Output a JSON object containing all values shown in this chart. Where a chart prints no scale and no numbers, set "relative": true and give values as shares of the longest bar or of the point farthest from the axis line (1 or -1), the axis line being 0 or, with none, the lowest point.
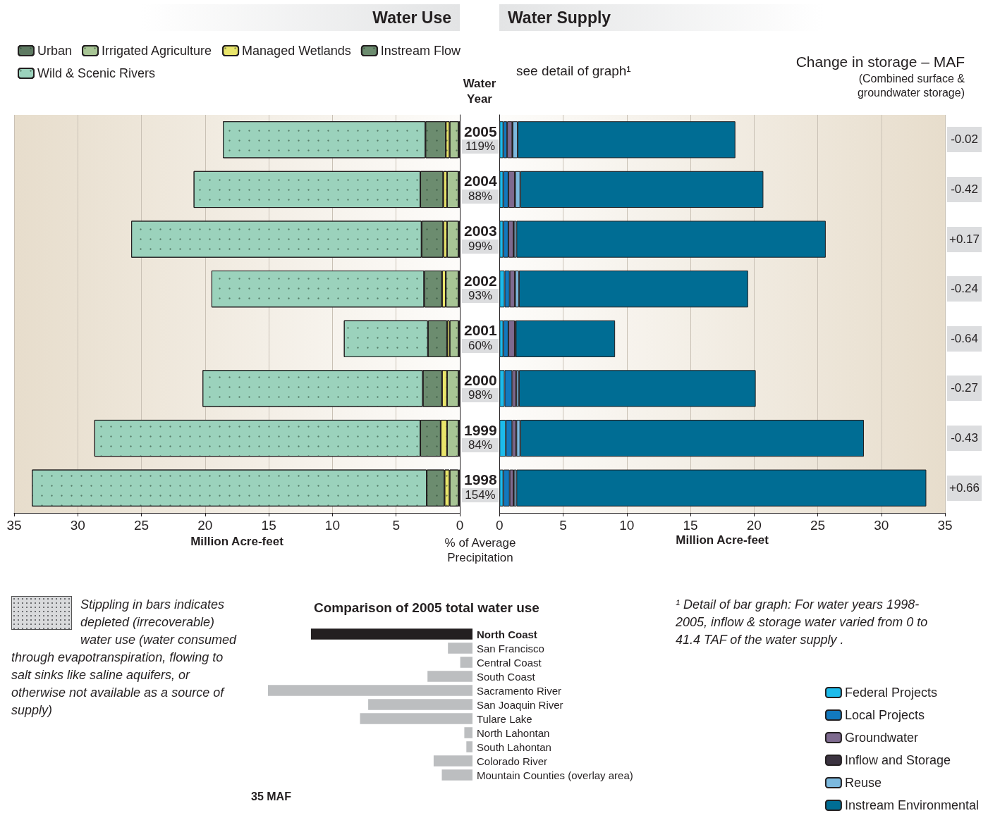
{
  "chart_data": [
    {
      "type": "bar",
      "orientation": "horizontal",
      "stacked": true,
      "title": "Water Use",
      "xlabel": "Million Acre-feet",
      "ylabel": "Water Year",
      "categories": [
        "2005",
        "2004",
        "2003",
        "2002",
        "2001",
        "2000",
        "1999",
        "1998"
      ],
      "xlim": [
        35,
        0
      ],
      "xticks": [
        35,
        30,
        25,
        20,
        15,
        10,
        5,
        0
      ],
      "grid": "x",
      "legend": "top",
      "annotations": [
        "Stippling in bars indicates depleted (irrecoverable) water use (water consumed through evapotranspiration, flowing to salt sinks like saline aquifers, or otherwise not available as a source of supply)"
      ],
      "series": [
        {
          "name": "Urban",
          "color": "#5e7a62",
          "values": [
            0.1,
            0.1,
            0.1,
            0.1,
            0.1,
            0.1,
            0.1,
            0.1
          ]
        },
        {
          "name": "Irrigated Agriculture",
          "color": "#a8c595",
          "values": [
            0.7,
            0.9,
            0.9,
            1.0,
            0.7,
            0.9,
            0.9,
            0.7
          ]
        },
        {
          "name": "Managed Wetlands",
          "color": "#e9e56b",
          "values": [
            0.3,
            0.3,
            0.3,
            0.3,
            0.2,
            0.4,
            0.5,
            0.4
          ]
        },
        {
          "name": "Instream Flow",
          "color": "#6c8c6f",
          "values": [
            1.6,
            1.8,
            1.7,
            1.4,
            1.5,
            1.5,
            1.6,
            1.4
          ]
        },
        {
          "name": "Wild & Scenic Rivers",
          "color": "#9bd2bc",
          "values": [
            15.9,
            17.8,
            22.8,
            16.7,
            6.6,
            17.3,
            25.6,
            31.0
          ]
        }
      ]
    },
    {
      "type": "bar",
      "orientation": "horizontal",
      "stacked": true,
      "title": "Water Supply",
      "xlabel": "Million Acre-feet",
      "categories": [
        "2005",
        "2004",
        "2003",
        "2002",
        "2001",
        "2000",
        "1999",
        "1998"
      ],
      "xlim": [
        0,
        35
      ],
      "xticks": [
        0,
        5,
        10,
        15,
        20,
        25,
        30,
        35
      ],
      "grid": "x",
      "legend": "bottom right",
      "tick_labels": "x",
      "annotations": [
        "see detail of graph¹",
        "¹ Detail of bar graph: For water years 1998-2005, inflow & storage water varied from 0 to 41.4 TAF of the water supply ."
      ],
      "series": [
        {
          "name": "Federal Projects",
          "color": "#1cbbeb",
          "values": [
            0.3,
            0.3,
            0.3,
            0.4,
            0.3,
            0.4,
            0.5,
            0.3
          ]
        },
        {
          "name": "Local Projects",
          "color": "#1279be",
          "values": [
            0.3,
            0.4,
            0.4,
            0.4,
            0.4,
            0.6,
            0.5,
            0.5
          ]
        },
        {
          "name": "Groundwater",
          "color": "#7e6a8f",
          "values": [
            0.4,
            0.5,
            0.4,
            0.4,
            0.5,
            0.3,
            0.3,
            0.3
          ]
        },
        {
          "name": "Inflow and Storage",
          "color": "#3b3340",
          "values": [
            0.03,
            0.03,
            0.03,
            0.03,
            0.03,
            0.03,
            0.03,
            0.03
          ]
        },
        {
          "name": "Reuse",
          "color": "#7cb9de",
          "values": [
            0.4,
            0.4,
            0.2,
            0.3,
            0.05,
            0.2,
            0.3,
            0.2
          ]
        },
        {
          "name": "Instream Environmental",
          "color": "#006d94",
          "values": [
            17.1,
            19.1,
            24.3,
            18.0,
            7.8,
            18.6,
            27.0,
            32.2
          ]
        }
      ]
    },
    {
      "type": "other",
      "xlabel": "% of Average Precipitation",
      "annotations": [
        "119%",
        "88%",
        "99%",
        "93%",
        "60%",
        "98%",
        "84%",
        "154%"
      ]
    },
    {
      "type": "other",
      "title": "Change in storage – MAF",
      "subtitle": "(Combined surface & groundwater storage)",
      "annotations": [
        "-0.02",
        "-0.42",
        "+0.17",
        "-0.24",
        "-0.64",
        "-0.27",
        "-0.43",
        "+0.66"
      ]
    },
    {
      "type": "bar",
      "orientation": "horizontal",
      "relative": true,
      "title": "Comparison of 2005 total water use",
      "categories": [
        "North Coast",
        "San Francisco",
        "Central Coast",
        "South Coast",
        "Sacramento River",
        "San Joaquin River",
        "Tulare Lake",
        "North Lahontan",
        "South Lahontan",
        "Colorado River",
        "Mountain Counties (overlay area)"
      ],
      "values": [
        0.79,
        0.12,
        0.06,
        0.22,
        1,
        0.51,
        0.55,
        0.04,
        0.03,
        0.19,
        0.15
      ],
      "colors": [
        "#231f20",
        "#bcbec0",
        "#bcbec0",
        "#bcbec0",
        "#bcbec0",
        "#bcbec0",
        "#bcbec0",
        "#bcbec0",
        "#bcbec0",
        "#bcbec0",
        "#bcbec0"
      ],
      "annotations": [
        "35 MAF"
      ]
    }
  ]
}
